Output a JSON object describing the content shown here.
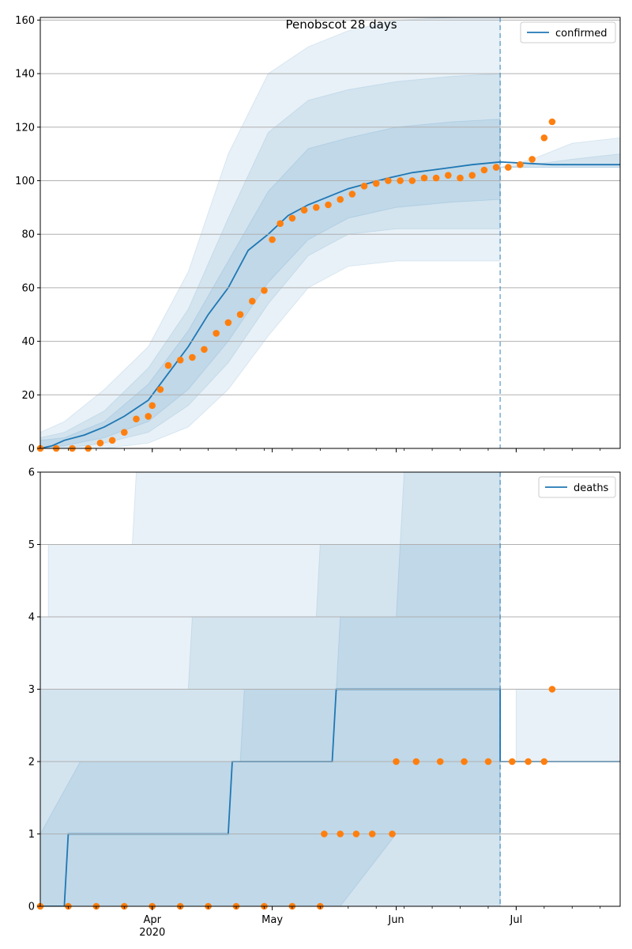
{
  "chart_data": [
    {
      "type": "line",
      "title": "Penobscot 28 days",
      "legend": {
        "label": "confirmed",
        "placement": "top-right"
      },
      "grid": "y",
      "ylim": [
        0,
        161
      ],
      "yticks": [
        0,
        20,
        40,
        60,
        80,
        100,
        120,
        140,
        160
      ],
      "ytick_labels": [
        "0",
        "20",
        "40",
        "60",
        "80",
        "100",
        "120",
        "140",
        "160"
      ],
      "xlim": [
        "2020-03-04",
        "2020-07-27"
      ],
      "forecast_start": "2020-06-27",
      "colors": {
        "model": "#1f77b4",
        "observed": "#ff7f0e",
        "band": "#1f77b4"
      },
      "bands": [
        {
          "x": [
            "2020-03-04",
            "2020-03-10",
            "2020-03-20",
            "2020-03-31",
            "2020-04-10",
            "2020-04-20",
            "2020-04-30",
            "2020-05-10",
            "2020-05-20",
            "2020-06-01",
            "2020-06-15",
            "2020-06-27"
          ],
          "lower": [
            0,
            0,
            0,
            2,
            8,
            22,
            42,
            60,
            68,
            70,
            70,
            70
          ],
          "upper": [
            6,
            10,
            22,
            38,
            66,
            110,
            140,
            150,
            156,
            160,
            161,
            161
          ]
        },
        {
          "x": [
            "2020-03-04",
            "2020-03-10",
            "2020-03-20",
            "2020-03-31",
            "2020-04-10",
            "2020-04-20",
            "2020-04-30",
            "2020-05-10",
            "2020-05-20",
            "2020-06-01",
            "2020-06-15",
            "2020-06-27"
          ],
          "lower": [
            0,
            0,
            2,
            6,
            16,
            32,
            54,
            72,
            80,
            82,
            82,
            82
          ],
          "upper": [
            4,
            6,
            14,
            30,
            52,
            86,
            118,
            130,
            134,
            137,
            139,
            140
          ]
        },
        {
          "x": [
            "2020-03-04",
            "2020-03-10",
            "2020-03-20",
            "2020-03-31",
            "2020-04-10",
            "2020-04-20",
            "2020-04-30",
            "2020-05-10",
            "2020-05-20",
            "2020-06-01",
            "2020-06-15",
            "2020-06-27"
          ],
          "lower": [
            0,
            1,
            4,
            10,
            22,
            40,
            62,
            78,
            86,
            90,
            92,
            93
          ],
          "upper": [
            3,
            4,
            10,
            24,
            44,
            70,
            96,
            112,
            116,
            120,
            122,
            123
          ]
        },
        {
          "x": [
            "2020-06-27",
            "2020-07-05",
            "2020-07-15",
            "2020-07-27"
          ],
          "lower": [
            105,
            105,
            105,
            105
          ],
          "upper": [
            105,
            108,
            114,
            116
          ]
        },
        {
          "x": [
            "2020-06-27",
            "2020-07-05",
            "2020-07-15",
            "2020-07-27"
          ],
          "lower": [
            105,
            105,
            105,
            105
          ],
          "upper": [
            105,
            106,
            108,
            110
          ]
        }
      ],
      "series": [
        {
          "name": "confirmed",
          "x": [
            "2020-03-04",
            "2020-03-07",
            "2020-03-10",
            "2020-03-15",
            "2020-03-20",
            "2020-03-25",
            "2020-03-31",
            "2020-04-05",
            "2020-04-10",
            "2020-04-15",
            "2020-04-20",
            "2020-04-25",
            "2020-04-30",
            "2020-05-05",
            "2020-05-10",
            "2020-05-15",
            "2020-05-20",
            "2020-05-25",
            "2020-05-30",
            "2020-06-05",
            "2020-06-10",
            "2020-06-15",
            "2020-06-20",
            "2020-06-27",
            "2020-07-10",
            "2020-07-27"
          ],
          "y": [
            0,
            1,
            3,
            5,
            8,
            12,
            18,
            28,
            38,
            50,
            60,
            74,
            80,
            87,
            91,
            94,
            97,
            99,
            101,
            103,
            104,
            105,
            106,
            107,
            106,
            106
          ]
        }
      ],
      "observed": {
        "x": [
          "2020-03-04",
          "2020-03-08",
          "2020-03-12",
          "2020-03-16",
          "2020-03-19",
          "2020-03-22",
          "2020-03-25",
          "2020-03-28",
          "2020-03-31",
          "2020-04-01",
          "2020-04-03",
          "2020-04-05",
          "2020-04-08",
          "2020-04-11",
          "2020-04-14",
          "2020-04-17",
          "2020-04-20",
          "2020-04-23",
          "2020-04-26",
          "2020-04-29",
          "2020-05-01",
          "2020-05-03",
          "2020-05-06",
          "2020-05-09",
          "2020-05-12",
          "2020-05-15",
          "2020-05-18",
          "2020-05-21",
          "2020-05-24",
          "2020-05-27",
          "2020-05-30",
          "2020-06-02",
          "2020-06-05",
          "2020-06-08",
          "2020-06-11",
          "2020-06-14",
          "2020-06-17",
          "2020-06-20",
          "2020-06-23",
          "2020-06-26",
          "2020-06-29",
          "2020-07-02",
          "2020-07-05",
          "2020-07-08",
          "2020-07-10"
        ],
        "y": [
          0,
          0,
          0,
          0,
          2,
          3,
          6,
          11,
          12,
          16,
          22,
          31,
          33,
          34,
          37,
          43,
          47,
          50,
          55,
          59,
          78,
          84,
          86,
          89,
          90,
          91,
          93,
          95,
          98,
          99,
          100,
          100,
          100,
          101,
          101,
          102,
          101,
          102,
          104,
          105,
          105,
          106,
          108,
          116,
          122
        ]
      }
    },
    {
      "type": "line",
      "title": "",
      "legend": {
        "label": "deaths",
        "placement": "top-right"
      },
      "grid": "y",
      "ylim": [
        0,
        6
      ],
      "yticks": [
        0,
        1,
        2,
        3,
        4,
        5,
        6
      ],
      "ytick_labels": [
        "0",
        "1",
        "2",
        "3",
        "4",
        "5",
        "6"
      ],
      "xlim": [
        "2020-03-04",
        "2020-07-27"
      ],
      "forecast_start": "2020-06-27",
      "xtick_labels": [
        {
          "x": "2020-04-01",
          "label": "Apr",
          "sublabel": "2020"
        },
        {
          "x": "2020-05-01",
          "label": "May",
          "sublabel": ""
        },
        {
          "x": "2020-06-01",
          "label": "Jun",
          "sublabel": ""
        },
        {
          "x": "2020-07-01",
          "label": "Jul",
          "sublabel": ""
        }
      ],
      "bands": [
        {
          "x": [
            "2020-03-04",
            "2020-03-06",
            "2020-03-06",
            "2020-03-27",
            "2020-03-28",
            "2020-06-27"
          ],
          "lower": [
            0,
            0,
            0,
            0,
            0,
            0
          ],
          "upper": [
            4,
            4,
            5,
            5,
            6,
            6
          ]
        },
        {
          "x": [
            "2020-03-04",
            "2020-03-11",
            "2020-03-11",
            "2020-04-10",
            "2020-04-11",
            "2020-05-12",
            "2020-05-13",
            "2020-06-27"
          ],
          "lower": [
            0,
            0,
            0,
            0,
            0,
            0,
            0,
            0
          ],
          "upper": [
            3,
            3,
            3,
            3,
            4,
            4,
            5,
            5
          ]
        },
        {
          "x": [
            "2020-03-04",
            "2020-03-14",
            "2020-04-23",
            "2020-04-24",
            "2020-05-17",
            "2020-05-18",
            "2020-06-01",
            "2020-06-03",
            "2020-06-27"
          ],
          "lower": [
            0,
            0,
            0,
            0,
            0,
            0,
            1,
            1,
            1
          ],
          "upper": [
            1,
            2,
            2,
            3,
            3,
            4,
            4,
            6,
            6
          ]
        },
        {
          "x": [
            "2020-06-27",
            "2020-07-01",
            "2020-07-01",
            "2020-07-20",
            "2020-07-20",
            "2020-07-27"
          ],
          "lower": [
            2,
            2,
            2,
            2,
            2,
            2
          ],
          "upper": [
            2,
            2,
            3,
            3,
            3,
            3
          ]
        }
      ],
      "series": [
        {
          "name": "deaths",
          "x": [
            "2020-03-04",
            "2020-03-10",
            "2020-03-11",
            "2020-04-20",
            "2020-04-21",
            "2020-05-16",
            "2020-05-17",
            "2020-06-27",
            "2020-06-27",
            "2020-07-27"
          ],
          "y": [
            0,
            0,
            1,
            1,
            2,
            2,
            3,
            3,
            2,
            2
          ]
        }
      ],
      "observed": {
        "x": [
          "2020-03-04",
          "2020-03-11",
          "2020-03-18",
          "2020-03-25",
          "2020-04-01",
          "2020-04-08",
          "2020-04-15",
          "2020-04-22",
          "2020-04-29",
          "2020-05-06",
          "2020-05-13",
          "2020-05-14",
          "2020-05-18",
          "2020-05-22",
          "2020-05-26",
          "2020-05-31",
          "2020-06-01",
          "2020-06-06",
          "2020-06-12",
          "2020-06-18",
          "2020-06-24",
          "2020-06-30",
          "2020-07-04",
          "2020-07-08",
          "2020-07-10"
        ],
        "y": [
          0,
          0,
          0,
          0,
          0,
          0,
          0,
          0,
          0,
          0,
          0,
          1,
          1,
          1,
          1,
          1,
          2,
          2,
          2,
          2,
          2,
          2,
          2,
          2,
          3
        ]
      }
    }
  ]
}
